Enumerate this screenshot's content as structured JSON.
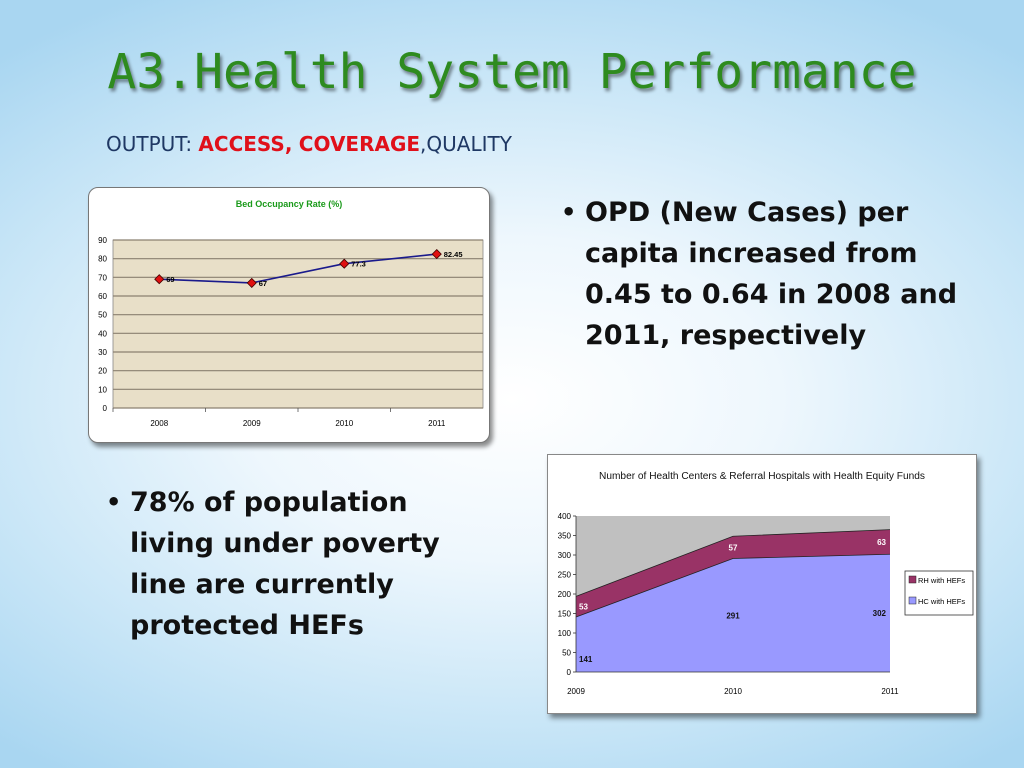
{
  "slide": {
    "title": "A3.Health System Performance",
    "subtitle_prefix": "OUTPUT: ",
    "subtitle_access": "ACCESS,",
    "subtitle_coverage": "COVERAGE",
    "subtitle_suffix": ",QUALITY",
    "bullet_symbol": "•",
    "bullet_opd": "OPD (New Cases) per capita increased from 0.45 to 0.64 in 2008 and 2011, respectively",
    "bullet_hef": "78% of population living under poverty line are currently protected HEFs",
    "colors": {
      "title": "#2e8b1f",
      "accent_red": "#e0101a",
      "subtitle": "#1f3864"
    }
  },
  "chart_data": [
    {
      "type": "line",
      "title": "Bed Occupancy Rate (%)",
      "categories": [
        "2008",
        "2009",
        "2010",
        "2011"
      ],
      "series": [
        {
          "values": [
            69,
            67,
            77.3,
            82.45
          ]
        }
      ],
      "data_labels": [
        "69",
        "67",
        "77.3",
        "82.45"
      ],
      "ylim": [
        0,
        90
      ],
      "yticks": [
        "0",
        "10",
        "20",
        "30",
        "40",
        "50",
        "60",
        "70",
        "80",
        "90"
      ],
      "grid": true,
      "colors": {
        "line": "#1a1a8c",
        "marker": "#e01010",
        "plot_bg": "#e8dfc8"
      }
    },
    {
      "type": "area",
      "title": "Number of Health Centers & Referral Hospitals with Health Equity Funds",
      "categories": [
        "2009",
        "2010",
        "2011"
      ],
      "series": [
        {
          "name": "HC with HEFs",
          "values": [
            141,
            291,
            302
          ],
          "color": "#9999ff"
        },
        {
          "name": "RH with HEFs",
          "values": [
            53,
            57,
            63
          ],
          "color": "#993366"
        }
      ],
      "stacked": true,
      "ylim": [
        0,
        400
      ],
      "yticks": [
        "0",
        "50",
        "100",
        "150",
        "200",
        "250",
        "300",
        "350",
        "400"
      ],
      "legend": "right",
      "colors": {
        "plot_bg": "#c0c0c0"
      }
    }
  ]
}
